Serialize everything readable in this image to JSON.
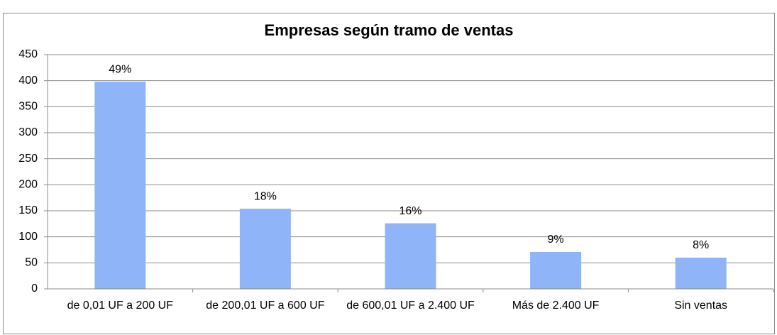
{
  "chart_data": {
    "type": "bar",
    "title": "Empresas según tramo de ventas",
    "categories": [
      "de 0,01 UF a 200 UF",
      "de 200,01 UF a 600 UF",
      "de 600,01 UF a 2.400 UF",
      "Más de 2.400 UF",
      "Sin ventas"
    ],
    "values": [
      398,
      154,
      126,
      71,
      60
    ],
    "annotations": [
      "49%",
      "18%",
      "16%",
      "9%",
      "8%"
    ],
    "color": "#8fb4f7",
    "ylim": [
      0,
      450
    ],
    "yticks": [
      0,
      50,
      100,
      150,
      200,
      250,
      300,
      350,
      400,
      450
    ],
    "grid": true
  }
}
